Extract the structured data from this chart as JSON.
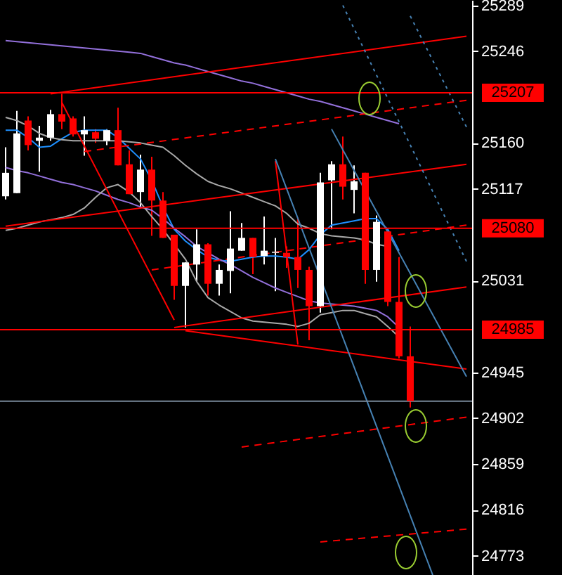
{
  "chart_data": {
    "type": "candlestick",
    "ylim": [
      24755,
      25294
    ],
    "yticks": [
      24773,
      24816,
      24859,
      24902,
      24945,
      25031,
      25117,
      25160,
      25246,
      25289
    ],
    "tick_labels": "y",
    "categories": [
      null,
      null,
      null,
      null,
      null,
      null,
      null,
      null,
      null,
      null,
      null,
      null,
      null,
      null,
      null,
      null,
      null,
      null,
      null,
      null,
      null,
      null,
      null,
      null,
      null,
      null,
      null,
      null,
      null,
      null,
      null,
      null,
      null,
      null,
      null,
      null,
      null,
      null,
      null,
      null,
      null,
      null
    ],
    "ohlc": [
      [
        25110,
        25156,
        25107,
        25132
      ],
      [
        25113,
        25190,
        25113,
        25169
      ],
      [
        25181,
        25185,
        25153,
        25158
      ],
      [
        25162,
        25176,
        25133,
        25165
      ],
      [
        25165,
        25191,
        25162,
        25187
      ],
      [
        25187,
        25206,
        25173,
        25180
      ],
      [
        25183,
        25185,
        25166,
        25168
      ],
      [
        25168,
        25185,
        25148,
        25172
      ],
      [
        25170,
        25173,
        25160,
        25164
      ],
      [
        25162,
        25173,
        25158,
        25172
      ],
      [
        25172,
        25193,
        25139,
        25139
      ],
      [
        25140,
        25153,
        25112,
        25112
      ],
      [
        25114,
        25149,
        25100,
        25135
      ],
      [
        25135,
        25147,
        25073,
        25106
      ],
      [
        25106,
        25114,
        25071,
        25071
      ],
      [
        25074,
        25074,
        25013,
        25026
      ],
      [
        25026,
        25048,
        24987,
        25048
      ],
      [
        25046,
        25079,
        25030,
        25065
      ],
      [
        25065,
        25066,
        25017,
        25028
      ],
      [
        25028,
        25046,
        25017,
        25041
      ],
      [
        25040,
        25096,
        25019,
        25061
      ],
      [
        25059,
        25085,
        25059,
        25071
      ],
      [
        25071,
        25071,
        25037,
        25053
      ],
      [
        25054,
        25091,
        25046,
        25059
      ],
      [
        25057,
        25071,
        25021,
        25058
      ],
      [
        25057,
        25063,
        25043,
        25053
      ],
      [
        25053,
        25090,
        25024,
        25041
      ],
      [
        25041,
        25044,
        24975,
        25007
      ],
      [
        25007,
        25132,
        25001,
        25123
      ],
      [
        25125,
        25143,
        25079,
        25140
      ],
      [
        25140,
        25166,
        25107,
        25119
      ],
      [
        25116,
        25139,
        25094,
        25124
      ],
      [
        25132,
        25132,
        25028,
        25041
      ],
      [
        25041,
        25092,
        25030,
        25086
      ],
      [
        25077,
        25079,
        25007,
        25011
      ],
      [
        25011,
        25053,
        24958,
        24960
      ],
      [
        24960,
        24988,
        24912,
        24918
      ],
      null,
      null,
      null,
      null,
      null
    ],
    "colors": [
      "#ffffff",
      "#ffffff",
      "#ff0000",
      "#ffffff",
      "#ffffff",
      "#ff0000",
      "#ff0000",
      "#ffffff",
      "#ff0000",
      "#ffffff",
      "#ff0000",
      "#ff0000",
      "#ffffff",
      "#ff0000",
      "#ff0000",
      "#ff0000",
      "#ffffff",
      "#ffffff",
      "#ff0000",
      "#ffffff",
      "#ffffff",
      "#ffffff",
      "#ff0000",
      "#ffffff",
      "#ffffff",
      "#ff0000",
      "#ff0000",
      "#ff0000",
      "#ffffff",
      "#ffffff",
      "#ff0000",
      "#ffffff",
      "#ff0000",
      "#ffffff",
      "#ff0000",
      "#ff0000",
      "#ff0000",
      null,
      null,
      null,
      null,
      null
    ],
    "series": [
      {
        "type": "line",
        "color": "#1e90ff",
        "values": [
          25172,
          25172,
          25165,
          25156,
          25157,
          25164,
          25170,
          25172,
          25172,
          25172,
          25165,
          25155,
          25145,
          25125,
          25100,
          25079,
          25068,
          25060,
          25053,
          25050,
          25049,
          25051,
          25053,
          25054,
          25054,
          25053,
          25051,
          25060,
          25074,
          25083,
          25085,
          25087,
          25089,
          25089,
          25079,
          25059,
          null,
          null,
          null,
          null,
          null,
          null
        ]
      },
      {
        "type": "line",
        "color": "#9370db",
        "values": [
          25137,
          25134,
          25132,
          25129,
          25126,
          25123,
          25121,
          25118,
          25115,
          25111,
          25107,
          25104,
          25100,
          25097,
          25089,
          25080,
          25072,
          25063,
          25057,
          25051,
          25046,
          25040,
          25034,
          25029,
          25024,
          25020,
          25016,
          25012,
          25010,
          25009,
          25008,
          25007,
          25005,
          25003,
          24997,
          24987,
          null,
          null,
          null,
          null,
          null,
          null
        ]
      },
      {
        "type": "line",
        "color": "#9370db",
        "values": [
          25256,
          25255,
          25254,
          25253,
          25252,
          25251,
          25250,
          25249,
          25248,
          25247,
          25246,
          25245,
          25244,
          25241,
          25238,
          25235,
          25233,
          25230,
          25227,
          25224,
          25221,
          25218,
          25216,
          25213,
          25210,
          25207,
          25204,
          25201,
          25199,
          25196,
          25193,
          25190,
          25187,
          25184,
          25181,
          25178,
          null,
          null,
          null,
          null,
          null,
          null
        ]
      },
      {
        "type": "line",
        "color": "#a9a9a9",
        "values": [
          25184,
          25181,
          25176,
          25169,
          25165,
          25163,
          25162,
          25162,
          25162,
          25162,
          25162,
          25161,
          25160,
          25158,
          25156,
          25148,
          25139,
          25131,
          25124,
          25120,
          25117,
          25113,
          25109,
          25105,
          25101,
          25094,
          25084,
          25080,
          25075,
          25073,
          25072,
          25071,
          25069,
          25065,
          25063,
          null,
          null,
          null,
          null,
          null,
          null,
          null
        ]
      },
      {
        "type": "line",
        "color": "#a9a9a9",
        "values": [
          25078,
          25080,
          25083,
          25086,
          25088,
          25090,
          25093,
          25099,
          25109,
          25118,
          25121,
          25114,
          25104,
          25091,
          25079,
          25065,
          25051,
          25030,
          25015,
          25008,
          25002,
          24996,
          24993,
          24992,
          24991,
          24990,
          24988,
          24991,
          24999,
          25001,
          25003,
          25003,
          25000,
          24997,
          24988,
          24978,
          null,
          null,
          null,
          null,
          null,
          null
        ]
      },
      {
        "type": "line",
        "color": "#ff0000",
        "values": [
          null,
          null,
          null,
          null,
          25206,
          null,
          null,
          null,
          null,
          null,
          null,
          null,
          null,
          null,
          null,
          null,
          null,
          null,
          null,
          null,
          null,
          null,
          null,
          null,
          null,
          null,
          null,
          null,
          null,
          null,
          null,
          null,
          null,
          null,
          null,
          null,
          null,
          null,
          null,
          null,
          null,
          25260
        ]
      },
      {
        "type": "line",
        "color": "#ff0000",
        "values": [
          25082,
          null,
          null,
          null,
          null,
          null,
          null,
          null,
          null,
          null,
          null,
          null,
          null,
          null,
          null,
          null,
          null,
          null,
          null,
          null,
          null,
          null,
          null,
          null,
          null,
          null,
          null,
          null,
          null,
          null,
          null,
          null,
          null,
          null,
          null,
          null,
          null,
          null,
          null,
          null,
          null,
          25140
        ]
      },
      {
        "type": "line",
        "color": "#ff0000",
        "values": [
          null,
          null,
          null,
          null,
          null,
          null,
          null,
          null,
          null,
          null,
          null,
          null,
          null,
          null,
          null,
          24987,
          null,
          null,
          null,
          null,
          null,
          null,
          null,
          null,
          null,
          null,
          null,
          null,
          null,
          null,
          null,
          null,
          null,
          null,
          null,
          null,
          null,
          null,
          null,
          null,
          null,
          25025
        ]
      },
      {
        "type": "line",
        "color": "#ff0000",
        "values": [
          null,
          null,
          null,
          null,
          null,
          null,
          null,
          null,
          null,
          null,
          null,
          null,
          null,
          null,
          null,
          null,
          24984,
          null,
          null,
          null,
          null,
          null,
          null,
          null,
          null,
          null,
          null,
          null,
          null,
          null,
          null,
          null,
          null,
          null,
          null,
          null,
          null,
          null,
          null,
          null,
          null,
          24948
        ]
      },
      {
        "type": "line",
        "color": "#ff0000",
        "values": [
          null,
          null,
          null,
          null,
          null,
          25198,
          null,
          null,
          null,
          null,
          null,
          null,
          null,
          null,
          null,
          24994,
          null,
          null,
          null,
          null,
          null,
          null,
          null,
          null,
          null,
          null,
          null,
          null,
          null,
          null,
          null,
          null,
          null,
          null,
          null,
          null,
          null,
          null,
          null,
          null,
          null,
          null
        ]
      },
      {
        "type": "line",
        "color": "#ff0000",
        "values": [
          null,
          null,
          null,
          null,
          null,
          null,
          null,
          null,
          null,
          null,
          null,
          null,
          null,
          null,
          null,
          null,
          null,
          null,
          null,
          null,
          null,
          null,
          null,
          null,
          25143,
          null,
          24971,
          null,
          null,
          null,
          null,
          null,
          null,
          null,
          null,
          null,
          null,
          null,
          null,
          null,
          null,
          null
        ]
      },
      {
        "type": "line",
        "color": "#ff0000",
        "line_style": "dashed",
        "values": [
          null,
          null,
          null,
          null,
          null,
          null,
          null,
          25152,
          null,
          null,
          null,
          null,
          null,
          null,
          null,
          null,
          null,
          null,
          null,
          null,
          null,
          null,
          null,
          null,
          null,
          null,
          null,
          null,
          null,
          null,
          null,
          null,
          null,
          null,
          null,
          null,
          null,
          null,
          null,
          null,
          null,
          25200
        ]
      },
      {
        "type": "line",
        "color": "#ff0000",
        "line_style": "dashed",
        "values": [
          null,
          null,
          null,
          null,
          null,
          null,
          null,
          null,
          null,
          null,
          null,
          null,
          null,
          25041,
          null,
          null,
          null,
          null,
          null,
          null,
          null,
          null,
          null,
          null,
          null,
          null,
          null,
          null,
          null,
          null,
          null,
          null,
          null,
          null,
          null,
          null,
          null,
          null,
          null,
          null,
          null,
          25083
        ]
      },
      {
        "type": "line",
        "color": "#ff0000",
        "line_style": "dashed",
        "values": [
          null,
          null,
          null,
          null,
          null,
          null,
          null,
          null,
          null,
          null,
          null,
          null,
          null,
          null,
          null,
          null,
          null,
          null,
          null,
          null,
          null,
          24875,
          null,
          null,
          null,
          null,
          null,
          null,
          null,
          null,
          null,
          null,
          null,
          null,
          null,
          null,
          null,
          null,
          null,
          null,
          null,
          24903
        ]
      },
      {
        "type": "line",
        "color": "#ff0000",
        "line_style": "dashed",
        "values": [
          null,
          null,
          null,
          null,
          null,
          null,
          null,
          null,
          null,
          null,
          null,
          null,
          null,
          null,
          null,
          null,
          null,
          null,
          null,
          null,
          null,
          null,
          null,
          null,
          null,
          null,
          null,
          null,
          24786,
          null,
          null,
          null,
          null,
          null,
          null,
          null,
          null,
          null,
          null,
          null,
          null,
          24798
        ]
      },
      {
        "type": "line",
        "color": "#4682b4",
        "values": [
          null,
          null,
          null,
          null,
          null,
          null,
          null,
          null,
          null,
          null,
          null,
          null,
          null,
          null,
          null,
          null,
          null,
          null,
          null,
          null,
          null,
          null,
          null,
          null,
          null,
          null,
          null,
          null,
          null,
          25173,
          null,
          null,
          null,
          null,
          null,
          null,
          null,
          null,
          null,
          null,
          null,
          24941
        ]
      },
      {
        "type": "line",
        "color": "#4682b4",
        "values": [
          null,
          null,
          null,
          null,
          null,
          null,
          null,
          null,
          null,
          null,
          null,
          null,
          null,
          null,
          null,
          null,
          null,
          null,
          null,
          null,
          null,
          null,
          null,
          null,
          25145,
          null,
          null,
          null,
          null,
          null,
          null,
          null,
          null,
          null,
          null,
          null,
          null,
          null,
          24755,
          null,
          null,
          null
        ]
      },
      {
        "type": "line",
        "color": "#4682b4",
        "line_style": "dotted",
        "values": [
          null,
          null,
          null,
          null,
          null,
          null,
          null,
          null,
          null,
          null,
          null,
          null,
          null,
          null,
          null,
          null,
          null,
          null,
          null,
          null,
          null,
          null,
          null,
          null,
          null,
          null,
          null,
          null,
          null,
          null,
          25289,
          null,
          null,
          null,
          null,
          null,
          null,
          null,
          null,
          null,
          null,
          25049
        ]
      },
      {
        "type": "line",
        "color": "#4682b4",
        "line_style": "dotted",
        "values": [
          null,
          null,
          null,
          null,
          null,
          null,
          null,
          null,
          null,
          null,
          null,
          null,
          null,
          null,
          null,
          null,
          null,
          null,
          null,
          null,
          null,
          null,
          null,
          null,
          null,
          null,
          null,
          null,
          null,
          null,
          null,
          null,
          null,
          null,
          null,
          null,
          25279,
          null,
          null,
          null,
          null,
          25175
        ]
      }
    ],
    "ref_lines": [
      {
        "axis": "y",
        "value": 25207,
        "label": "25207",
        "color": "#ff0000"
      },
      {
        "axis": "y",
        "value": 25080,
        "label": "25080",
        "color": "#ff0000"
      },
      {
        "axis": "y",
        "value": 24985,
        "label": "24985",
        "color": "#ff0000"
      },
      {
        "axis": "y",
        "value": 24918,
        "color": "#778899"
      }
    ]
  }
}
